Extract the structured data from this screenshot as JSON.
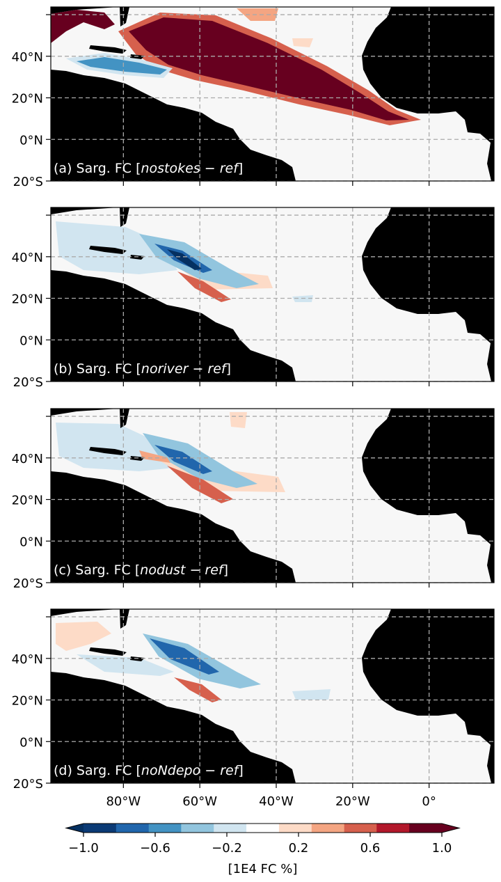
{
  "panels": [
    {
      "prefix": "(a) Sarg. FC [",
      "experiment": "nostokes − ref",
      "suffix": "]"
    },
    {
      "prefix": "(b) Sarg. FC [",
      "experiment": "noriver − ref",
      "suffix": "]"
    },
    {
      "prefix": "(c) Sarg. FC [",
      "experiment": "nodust − ref",
      "suffix": "]"
    },
    {
      "prefix": "(d) Sarg. FC [",
      "experiment": "noNdepo − ref",
      "suffix": "]"
    }
  ],
  "map": {
    "lon_range": [
      -99,
      17
    ],
    "lat_range": [
      -20,
      63.7
    ],
    "lon_ticks": [
      {
        "value": -80,
        "label": "80°W"
      },
      {
        "value": -60,
        "label": "60°W"
      },
      {
        "value": -40,
        "label": "40°W"
      },
      {
        "value": -20,
        "label": "20°W"
      },
      {
        "value": 0,
        "label": "0°"
      }
    ],
    "lat_ticks": [
      {
        "value": 60,
        "label": null
      },
      {
        "value": 40,
        "label": "40°N"
      },
      {
        "value": 20,
        "label": "20°N"
      },
      {
        "value": 0,
        "label": "0°N"
      },
      {
        "value": -20,
        "label": "20°S"
      }
    ],
    "land_color": "#000000",
    "sea_color": "#f7f7f7"
  },
  "colorbar": {
    "label": "[1E4 FC %]",
    "levels": [
      -1.0,
      -0.818,
      -0.636,
      -0.455,
      -0.273,
      -0.091,
      0.091,
      0.273,
      0.455,
      0.636,
      0.818,
      1.0
    ],
    "colors": [
      "#0b3a75",
      "#2166ac",
      "#4393c3",
      "#92c5de",
      "#d1e5f0",
      "#ffffff",
      "#fddbc7",
      "#f4a582",
      "#d6604d",
      "#b2182b",
      "#67001f"
    ],
    "extend_colors": [
      "#053061",
      "#67001f"
    ],
    "ticks": [
      {
        "value": -1.0,
        "label": "−1.0"
      },
      {
        "value": -0.6,
        "label": "−0.6"
      },
      {
        "value": -0.2,
        "label": "−0.2"
      },
      {
        "value": 0.2,
        "label": "0.2"
      },
      {
        "value": 0.6,
        "label": "0.6"
      },
      {
        "value": 1.0,
        "label": "1.0"
      }
    ]
  }
}
